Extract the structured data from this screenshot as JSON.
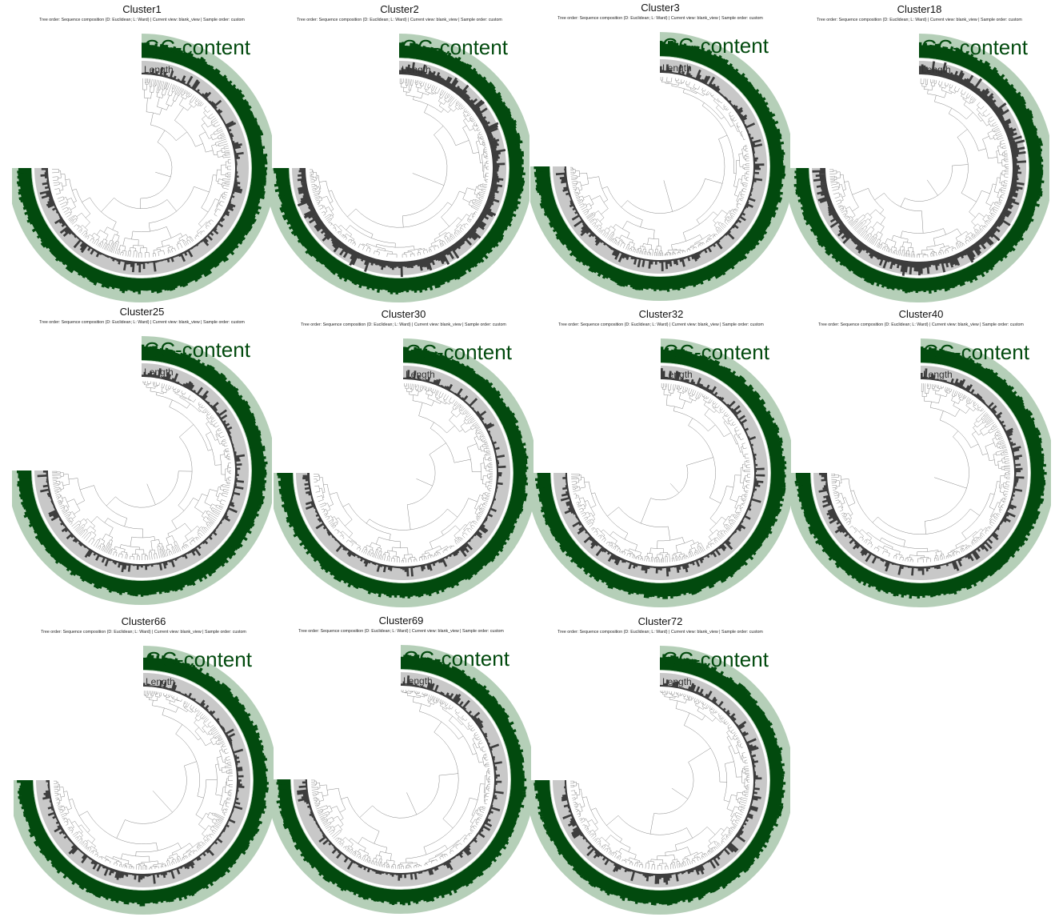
{
  "subtitle_text": "Tree order: Sequence composition (D: Euclidean; L: Ward) | Current view: blank_view | Sample order: custom",
  "layers": {
    "gc_label": "GC-content",
    "length_label": "Length"
  },
  "colors": {
    "gc_bar": "#024a0e",
    "gc_background": "#b5cfb8",
    "length_bar": "#3d3d3d",
    "length_background": "#c8c8c8",
    "tree_line": "#888888"
  },
  "panels": [
    {
      "title": "Cluster1"
    },
    {
      "title": "Cluster2"
    },
    {
      "title": "Cluster3"
    },
    {
      "title": "Cluster18"
    },
    {
      "title": "Cluster25"
    },
    {
      "title": "Cluster30"
    },
    {
      "title": "Cluster32"
    },
    {
      "title": "Cluster40"
    },
    {
      "title": "Cluster66"
    },
    {
      "title": "Cluster69"
    },
    {
      "title": "Cluster72"
    }
  ]
}
